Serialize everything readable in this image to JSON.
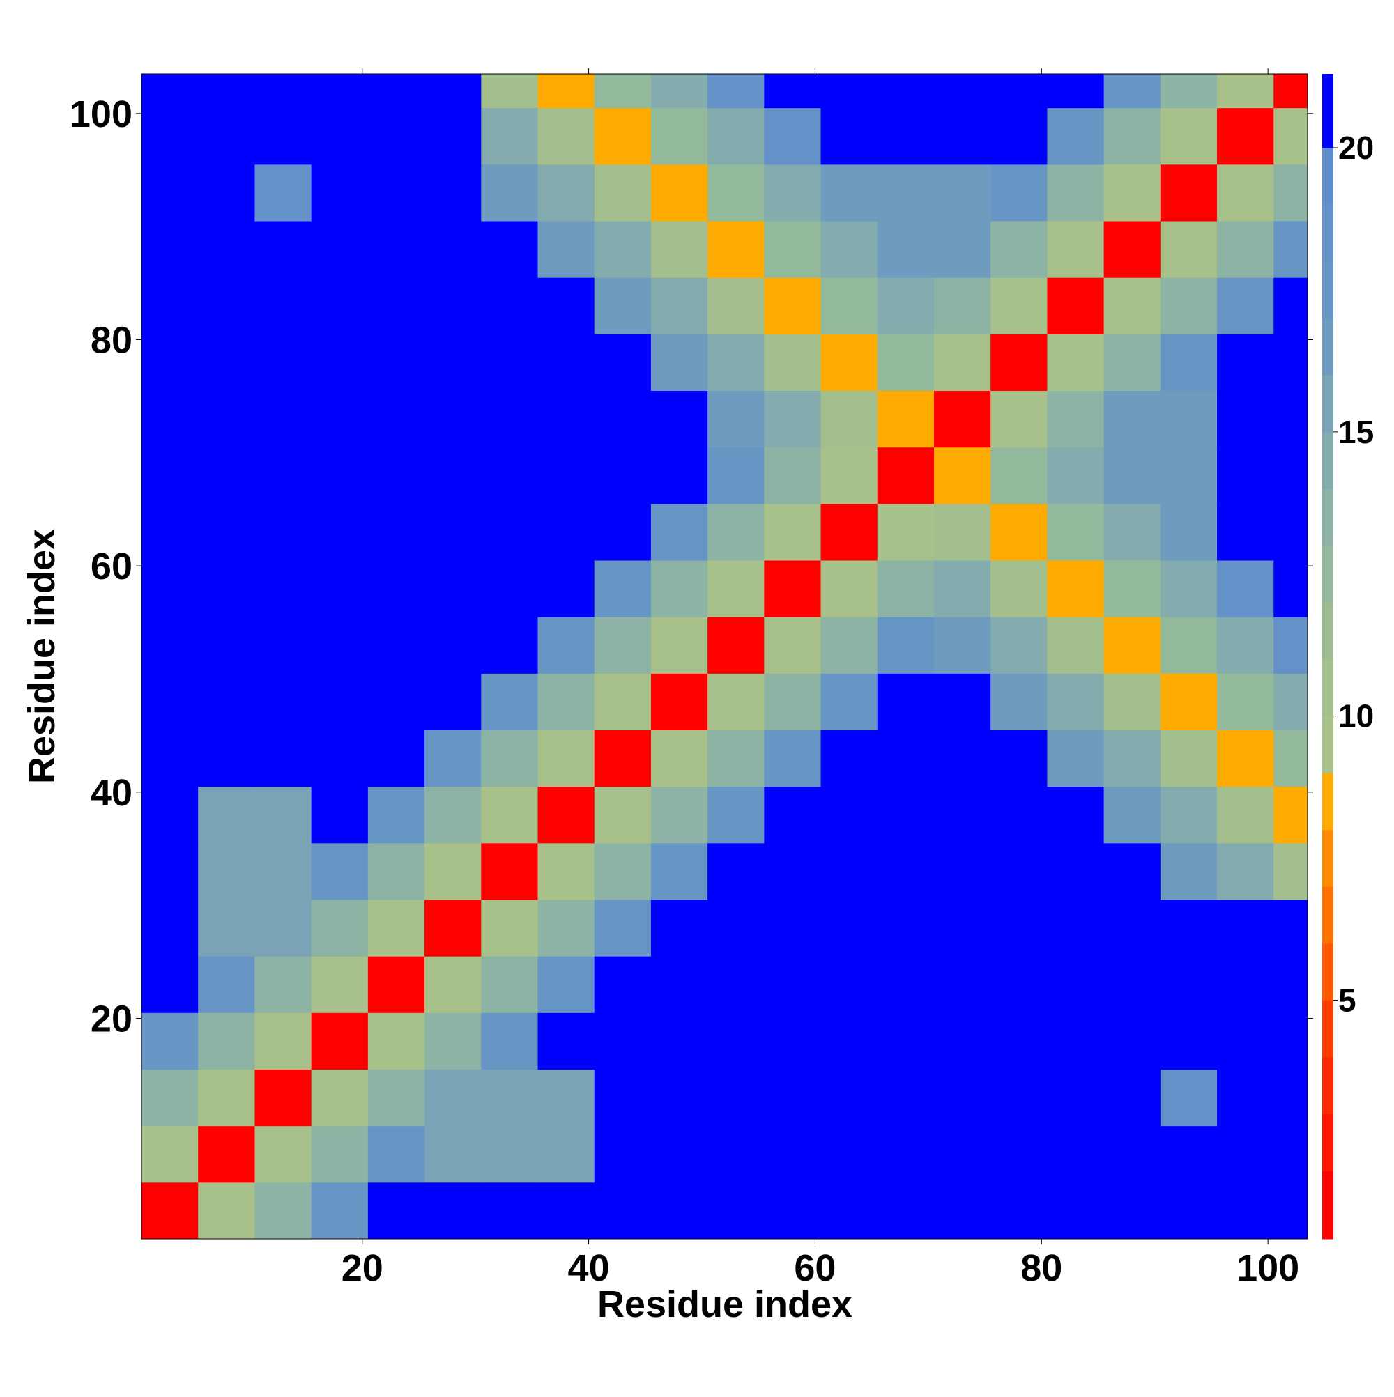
{
  "chart_data": {
    "type": "heatmap",
    "xlabel": "Residue index",
    "ylabel": "Residue index",
    "x": [
      3,
      8,
      13,
      18,
      23,
      28,
      33,
      38,
      43,
      48,
      53,
      58,
      63,
      68,
      73,
      78,
      83,
      88,
      93,
      98,
      103
    ],
    "y": [
      3,
      8,
      13,
      18,
      23,
      28,
      33,
      38,
      43,
      48,
      53,
      58,
      63,
      68,
      73,
      78,
      83,
      88,
      93,
      98,
      103
    ],
    "z": [
      [
        1,
        9,
        13,
        17,
        21,
        21,
        21,
        21,
        21,
        21,
        21,
        21,
        21,
        21,
        21,
        21,
        21,
        21,
        21,
        21,
        21
      ],
      [
        9,
        1,
        9,
        13,
        17,
        15,
        15,
        15,
        21,
        21,
        21,
        21,
        21,
        21,
        21,
        21,
        21,
        21,
        21,
        21,
        21
      ],
      [
        13,
        9,
        1,
        9,
        13,
        15,
        15,
        15,
        21,
        21,
        21,
        21,
        21,
        21,
        21,
        21,
        21,
        21,
        18,
        21,
        21
      ],
      [
        17,
        13,
        9,
        1,
        9,
        13,
        17,
        21,
        21,
        21,
        21,
        21,
        21,
        21,
        21,
        21,
        21,
        21,
        21,
        21,
        21
      ],
      [
        21,
        17,
        13,
        9,
        1,
        9,
        13,
        17,
        21,
        21,
        21,
        21,
        21,
        21,
        21,
        21,
        21,
        21,
        21,
        21,
        21
      ],
      [
        21,
        15,
        15,
        13,
        9,
        1,
        9,
        13,
        17,
        21,
        21,
        21,
        21,
        21,
        21,
        21,
        21,
        21,
        21,
        21,
        21
      ],
      [
        21,
        15,
        15,
        17,
        13,
        9,
        1,
        9,
        13,
        17,
        21,
        21,
        21,
        21,
        21,
        21,
        21,
        21,
        16,
        14,
        10
      ],
      [
        21,
        15,
        15,
        21,
        17,
        13,
        9,
        1,
        9,
        13,
        17,
        21,
        21,
        21,
        21,
        21,
        21,
        16,
        14,
        10,
        8
      ],
      [
        21,
        21,
        21,
        21,
        21,
        17,
        13,
        9,
        1,
        9,
        13,
        17,
        21,
        21,
        21,
        21,
        16,
        14,
        10,
        8,
        12
      ],
      [
        21,
        21,
        21,
        21,
        21,
        21,
        17,
        13,
        9,
        1,
        9,
        13,
        17,
        21,
        21,
        16,
        14,
        10,
        8,
        12,
        14
      ],
      [
        21,
        21,
        21,
        21,
        21,
        21,
        21,
        17,
        13,
        9,
        1,
        9,
        13,
        17,
        16,
        14,
        10,
        8,
        12,
        14,
        18
      ],
      [
        21,
        21,
        21,
        21,
        21,
        21,
        21,
        21,
        17,
        13,
        9,
        1,
        9,
        13,
        14,
        10,
        8,
        12,
        14,
        18,
        21
      ],
      [
        21,
        21,
        21,
        21,
        21,
        21,
        21,
        21,
        21,
        17,
        13,
        9,
        1,
        9,
        10,
        8,
        12,
        14,
        16,
        21,
        21
      ],
      [
        21,
        21,
        21,
        21,
        21,
        21,
        21,
        21,
        21,
        21,
        17,
        13,
        9,
        1,
        8,
        12,
        14,
        16,
        16,
        21,
        21
      ],
      [
        21,
        21,
        21,
        21,
        21,
        21,
        21,
        21,
        21,
        21,
        16,
        14,
        10,
        8,
        1,
        9,
        13,
        16,
        16,
        21,
        21
      ],
      [
        21,
        21,
        21,
        21,
        21,
        21,
        21,
        21,
        21,
        16,
        14,
        10,
        8,
        12,
        9,
        1,
        9,
        13,
        17,
        21,
        21
      ],
      [
        21,
        21,
        21,
        21,
        21,
        21,
        21,
        21,
        16,
        14,
        10,
        8,
        12,
        14,
        13,
        9,
        1,
        9,
        13,
        17,
        21
      ],
      [
        21,
        21,
        21,
        21,
        21,
        21,
        21,
        16,
        14,
        10,
        8,
        12,
        14,
        16,
        16,
        13,
        9,
        1,
        9,
        13,
        17
      ],
      [
        21,
        21,
        18,
        21,
        21,
        21,
        16,
        14,
        10,
        8,
        12,
        14,
        16,
        16,
        16,
        17,
        13,
        9,
        1,
        9,
        13
      ],
      [
        21,
        21,
        21,
        21,
        21,
        21,
        14,
        10,
        8,
        12,
        14,
        18,
        21,
        21,
        21,
        21,
        17,
        13,
        9,
        1,
        9
      ],
      [
        21,
        21,
        21,
        21,
        21,
        21,
        10,
        8,
        12,
        14,
        18,
        21,
        21,
        21,
        21,
        21,
        21,
        17,
        13,
        9,
        1
      ]
    ],
    "xlim": [
      0.5,
      103.5
    ],
    "ylim": [
      0.5,
      103.5
    ],
    "xticks": [
      20,
      40,
      60,
      80,
      100
    ],
    "yticks": [
      20,
      40,
      60,
      80,
      100
    ],
    "zlim": [
      0.8,
      21.3
    ],
    "zticks": [
      5,
      10,
      15,
      20
    ],
    "color_levels": [
      0.8,
      2,
      3,
      4,
      5,
      6,
      7,
      8,
      9,
      10,
      11,
      12,
      13,
      14,
      15,
      16,
      17,
      18,
      19,
      20,
      21.3
    ],
    "colors": [
      "#ff0000",
      "#ff1500",
      "#ff2a00",
      "#ff4000",
      "#ff5a00",
      "#ff7200",
      "#ff8c00",
      "#ffaa00",
      "#a8c08a",
      "#a4bf8e",
      "#9cbd94",
      "#93b99c",
      "#8cb3a4",
      "#84abad",
      "#7ba3b6",
      "#6f9bbf",
      "#6896c4",
      "#6491c8",
      "#608ecb",
      "#0000ff"
    ]
  }
}
